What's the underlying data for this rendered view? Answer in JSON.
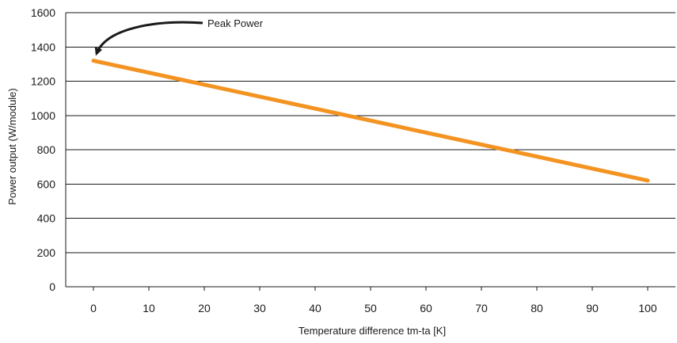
{
  "chart_data": {
    "type": "line",
    "title": "",
    "xlabel": "Temperature difference tm-ta [K]",
    "ylabel": "Power output (W/module)",
    "xlim": [
      -5,
      105
    ],
    "ylim": [
      0,
      1600
    ],
    "x_ticks": [
      0,
      10,
      20,
      30,
      40,
      50,
      60,
      70,
      80,
      90,
      100
    ],
    "y_ticks": [
      0,
      200,
      400,
      600,
      800,
      1000,
      1200,
      1400,
      1600
    ],
    "grid": "horizontal",
    "series": [
      {
        "color": "#f39321",
        "points": [
          {
            "x": 0,
            "y": 1320
          },
          {
            "x": 100,
            "y": 620
          }
        ]
      }
    ],
    "annotations": [
      {
        "text": "Peak Power",
        "points_to": {
          "x": 0,
          "y": 1320
        }
      }
    ]
  },
  "colors": {
    "line": "#f39321",
    "grid": "#1a1a1a",
    "text": "#1a1a1a"
  }
}
